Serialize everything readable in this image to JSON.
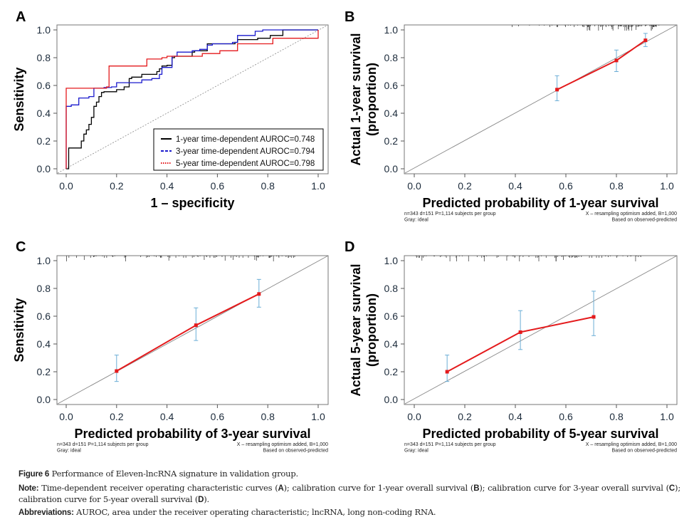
{
  "figure": {
    "caption": {
      "figure_label": "Figure 6",
      "title": " Performance of Eleven-lncRNA signature in validation group.",
      "note_label": "Note:",
      "note_parts": [
        " Time-dependent receiver operating characteristic curves (",
        "A",
        "); calibration curve for 1-year overall survival (",
        "B",
        "); calibration curve for 3-year overall survival (",
        "C",
        "); calibration curve for 5-year overall survival (",
        "D",
        ")."
      ],
      "abbrev_label": "Abbreviations:",
      "abbrev_text": " AUROC, area under the receiver operating characteristic; lncRNA, long non-coding RNA."
    }
  },
  "chart_data": [
    {
      "panel": "A",
      "type": "line",
      "title": "",
      "xlabel": "1 – specificity",
      "ylabel": "Sensitivity",
      "xlim": [
        0,
        1
      ],
      "ylim": [
        0,
        1
      ],
      "xticks": [
        "0.0",
        "0.2",
        "0.4",
        "0.6",
        "0.8",
        "1.0"
      ],
      "yticks": [
        "0.0",
        "0.2",
        "0.4",
        "0.6",
        "0.8",
        "1.0"
      ],
      "grid": false,
      "legend_position": "bottom-right",
      "reference_line": {
        "name": "diagonal",
        "x": [
          0,
          1
        ],
        "y": [
          0,
          1
        ],
        "color": "#888888",
        "style": "dotted"
      },
      "series": [
        {
          "name": "1-year time-dependent AUROC=0.748",
          "color": "#000000",
          "style": "solid",
          "x": [
            0,
            0.01,
            0.01,
            0.06,
            0.06,
            0.07,
            0.07,
            0.08,
            0.08,
            0.09,
            0.09,
            0.1,
            0.1,
            0.11,
            0.11,
            0.12,
            0.12,
            0.13,
            0.13,
            0.14,
            0.14,
            0.15,
            0.15,
            0.2,
            0.2,
            0.23,
            0.23,
            0.25,
            0.25,
            0.26,
            0.26,
            0.3,
            0.3,
            0.36,
            0.36,
            0.37,
            0.37,
            0.38,
            0.38,
            0.4,
            0.4,
            0.42,
            0.42,
            0.43,
            0.43,
            0.5,
            0.5,
            0.51,
            0.51,
            0.56,
            0.56,
            0.67,
            0.67,
            0.68,
            0.68,
            0.76,
            0.76,
            0.81,
            0.81,
            0.86,
            0.86,
            1.0
          ],
          "y": [
            0,
            0,
            0.15,
            0.15,
            0.2,
            0.2,
            0.25,
            0.25,
            0.28,
            0.28,
            0.32,
            0.32,
            0.37,
            0.37,
            0.45,
            0.45,
            0.48,
            0.48,
            0.52,
            0.52,
            0.55,
            0.55,
            0.555,
            0.555,
            0.57,
            0.57,
            0.59,
            0.59,
            0.65,
            0.65,
            0.66,
            0.66,
            0.68,
            0.68,
            0.7,
            0.7,
            0.72,
            0.72,
            0.74,
            0.74,
            0.745,
            0.745,
            0.8,
            0.8,
            0.81,
            0.81,
            0.84,
            0.84,
            0.85,
            0.85,
            0.9,
            0.9,
            0.91,
            0.91,
            0.93,
            0.93,
            0.94,
            0.94,
            0.96,
            0.96,
            1.0,
            1.0
          ]
        },
        {
          "name": "3-year time-dependent AUROC=0.794",
          "color": "#1a1acd",
          "style": "dashed",
          "x": [
            0,
            0,
            0.02,
            0.02,
            0.05,
            0.05,
            0.09,
            0.09,
            0.11,
            0.11,
            0.15,
            0.15,
            0.18,
            0.18,
            0.2,
            0.2,
            0.25,
            0.25,
            0.3,
            0.3,
            0.34,
            0.34,
            0.37,
            0.37,
            0.38,
            0.38,
            0.42,
            0.42,
            0.44,
            0.44,
            0.5,
            0.5,
            0.53,
            0.53,
            0.56,
            0.56,
            0.58,
            0.58,
            0.66,
            0.66,
            0.68,
            0.68,
            0.75,
            0.75,
            0.78,
            0.78,
            1.0
          ],
          "y": [
            0,
            0.45,
            0.45,
            0.46,
            0.46,
            0.51,
            0.51,
            0.52,
            0.52,
            0.58,
            0.58,
            0.585,
            0.585,
            0.59,
            0.59,
            0.62,
            0.62,
            0.62,
            0.62,
            0.64,
            0.64,
            0.65,
            0.65,
            0.68,
            0.68,
            0.73,
            0.73,
            0.81,
            0.81,
            0.84,
            0.84,
            0.85,
            0.85,
            0.86,
            0.86,
            0.89,
            0.89,
            0.9,
            0.9,
            0.91,
            0.91,
            0.96,
            0.96,
            0.99,
            0.99,
            1.0,
            1.0
          ]
        },
        {
          "name": "5-year time-dependent AUROC=0.798",
          "color": "#e41a1c",
          "style": "dotted",
          "x": [
            0,
            0,
            0.16,
            0.16,
            0.17,
            0.17,
            0.32,
            0.32,
            0.38,
            0.38,
            0.4,
            0.4,
            0.54,
            0.54,
            0.61,
            0.61,
            0.68,
            0.68,
            0.82,
            0.82,
            1.0,
            1.0
          ],
          "y": [
            0,
            0.58,
            0.58,
            0.59,
            0.59,
            0.74,
            0.74,
            0.79,
            0.79,
            0.8,
            0.8,
            0.81,
            0.81,
            0.83,
            0.83,
            0.85,
            0.85,
            0.9,
            0.9,
            0.94,
            0.94,
            1.0
          ]
        }
      ]
    },
    {
      "panel": "B",
      "type": "line",
      "title": "",
      "xlabel": "Predicted probability of 1-year survival",
      "ylabel": "Actual 1-year survival\n(proportion)",
      "xlim": [
        0,
        1
      ],
      "ylim": [
        0,
        1
      ],
      "xticks": [
        "0.0",
        "0.2",
        "0.4",
        "0.6",
        "0.8",
        "1.0"
      ],
      "yticks": [
        "0.0",
        "0.2",
        "0.4",
        "0.6",
        "0.8",
        "1.0"
      ],
      "grid": false,
      "ideal_line": {
        "x": [
          0,
          1
        ],
        "y": [
          0,
          1
        ],
        "color": "#888888"
      },
      "series": [
        {
          "name": "observed",
          "color": "#e41a1c",
          "x": [
            0.565,
            0.8,
            0.915
          ],
          "y": [
            0.57,
            0.78,
            0.925
          ],
          "error_low": [
            0.49,
            0.7,
            0.88
          ],
          "error_high": [
            0.67,
            0.855,
            0.975
          ]
        }
      ],
      "error_color": "#6baed6",
      "rug_range": [
        0.38,
        0.97
      ],
      "footnote_left": [
        "n=343 d=151 P=1,114 subjects per group",
        "Gray: ideal"
      ],
      "footnote_right": [
        "X – resampling optimism added, B=1,000",
        "Based on observed-predicted"
      ]
    },
    {
      "panel": "C",
      "type": "line",
      "title": "",
      "xlabel": "Predicted probability of 3-year survival",
      "ylabel": "Sensitivity",
      "xlim": [
        0,
        1
      ],
      "ylim": [
        0,
        1
      ],
      "xticks": [
        "0.0",
        "0.2",
        "0.4",
        "0.6",
        "0.8",
        "1.0"
      ],
      "yticks": [
        "0.0",
        "0.2",
        "0.4",
        "0.6",
        "0.8",
        "1.0"
      ],
      "grid": false,
      "ideal_line": {
        "x": [
          0,
          1
        ],
        "y": [
          0,
          1
        ],
        "color": "#888888"
      },
      "series": [
        {
          "name": "observed",
          "color": "#e41a1c",
          "x": [
            0.2,
            0.515,
            0.765
          ],
          "y": [
            0.205,
            0.535,
            0.76
          ],
          "error_low": [
            0.13,
            0.425,
            0.665
          ],
          "error_high": [
            0.32,
            0.66,
            0.865
          ]
        }
      ],
      "error_color": "#6baed6",
      "rug_range": [
        0.0,
        0.93
      ],
      "footnote_left": [
        "n=343 d=151 P=1,114 subjects per group",
        "Gray: ideal"
      ],
      "footnote_right": [
        "X – resampling optimism added, B=1,000",
        "Based on observed-predicted"
      ]
    },
    {
      "panel": "D",
      "type": "line",
      "title": "",
      "xlabel": "Predicted probability of 5-year survival",
      "ylabel": "Actual 5-year survival\n(proportion)",
      "xlim": [
        0,
        1
      ],
      "ylim": [
        0,
        1
      ],
      "xticks": [
        "0.0",
        "0.2",
        "0.4",
        "0.6",
        "0.8",
        "1.0"
      ],
      "yticks": [
        "0.0",
        "0.2",
        "0.4",
        "0.6",
        "0.8",
        "1.0"
      ],
      "grid": false,
      "ideal_line": {
        "x": [
          0,
          1
        ],
        "y": [
          0,
          1
        ],
        "color": "#888888"
      },
      "series": [
        {
          "name": "observed",
          "color": "#e41a1c",
          "x": [
            0.13,
            0.42,
            0.71
          ],
          "y": [
            0.2,
            0.485,
            0.595
          ],
          "error_low": [
            0.13,
            0.36,
            0.46
          ],
          "error_high": [
            0.32,
            0.64,
            0.78
          ]
        }
      ],
      "error_color": "#6baed6",
      "rug_range": [
        0.0,
        0.9
      ],
      "footnote_left": [
        "n=343 d=151  P=1,114 subjects per group",
        "Gray: ideal"
      ],
      "footnote_right": [
        "X – resampling optimism added, B=1,000",
        "Based on observed-predicted"
      ]
    }
  ]
}
